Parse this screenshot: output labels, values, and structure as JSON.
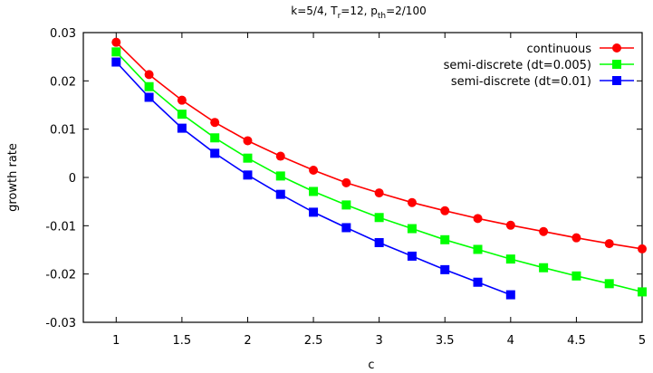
{
  "chart_data": {
    "type": "line",
    "title": {
      "k_part": "k=5/4, T",
      "tr_sub": "r",
      "tr_part": "=12, p",
      "pth_sub": "th",
      "pth_part": "=2/100"
    },
    "xlabel": "c",
    "ylabel": "growth rate",
    "xlim": [
      0.75,
      5.0
    ],
    "ylim": [
      -0.03,
      0.03
    ],
    "xticks": [
      1,
      1.5,
      2,
      2.5,
      3,
      3.5,
      4,
      4.5,
      5
    ],
    "xtick_labels": [
      "1",
      "1.5",
      "2",
      "2.5",
      "3",
      "3.5",
      "4",
      "4.5",
      "5"
    ],
    "yticks": [
      0.03,
      0.02,
      0.01,
      0,
      -0.01,
      -0.02,
      -0.03
    ],
    "ytick_labels": [
      "0.03",
      "0.02",
      "0.01",
      "0",
      "-0.01",
      "-0.02",
      "-0.03"
    ],
    "grid": false,
    "legend_position": "top-right",
    "series": [
      {
        "name": "continuous",
        "color": "#ff0000",
        "marker": "circle",
        "x": [
          1,
          1.25,
          1.5,
          1.75,
          2,
          2.25,
          2.5,
          2.75,
          3,
          3.25,
          3.5,
          3.75,
          4,
          4.25,
          4.5,
          4.75,
          5
        ],
        "y": [
          0.028,
          0.0213,
          0.016,
          0.0114,
          0.0076,
          0.0044,
          0.0015,
          -0.0011,
          -0.0032,
          -0.0052,
          -0.0069,
          -0.0085,
          -0.0099,
          -0.0112,
          -0.0125,
          -0.0137,
          -0.0148
        ]
      },
      {
        "name": "semi-discrete (dt=0.005)",
        "color": "#00ff00",
        "marker": "square",
        "x": [
          1,
          1.25,
          1.5,
          1.75,
          2,
          2.25,
          2.5,
          2.75,
          3,
          3.25,
          3.5,
          3.75,
          4,
          4.25,
          4.5,
          4.75,
          5
        ],
        "y": [
          0.026,
          0.0188,
          0.0131,
          0.0082,
          0.004,
          0.0003,
          -0.0029,
          -0.0057,
          -0.0083,
          -0.0106,
          -0.0129,
          -0.0149,
          -0.0169,
          -0.0187,
          -0.0204,
          -0.022,
          -0.0237
        ]
      },
      {
        "name": "semi-discrete (dt=0.01)",
        "color": "#0000ff",
        "marker": "square",
        "x": [
          1,
          1.25,
          1.5,
          1.75,
          2,
          2.25,
          2.5,
          2.75,
          3,
          3.25,
          3.5,
          3.75,
          4
        ],
        "y": [
          0.0239,
          0.0166,
          0.0102,
          0.005,
          0.0005,
          -0.0035,
          -0.0072,
          -0.0104,
          -0.0135,
          -0.0163,
          -0.0191,
          -0.0217,
          -0.0243
        ]
      }
    ]
  }
}
